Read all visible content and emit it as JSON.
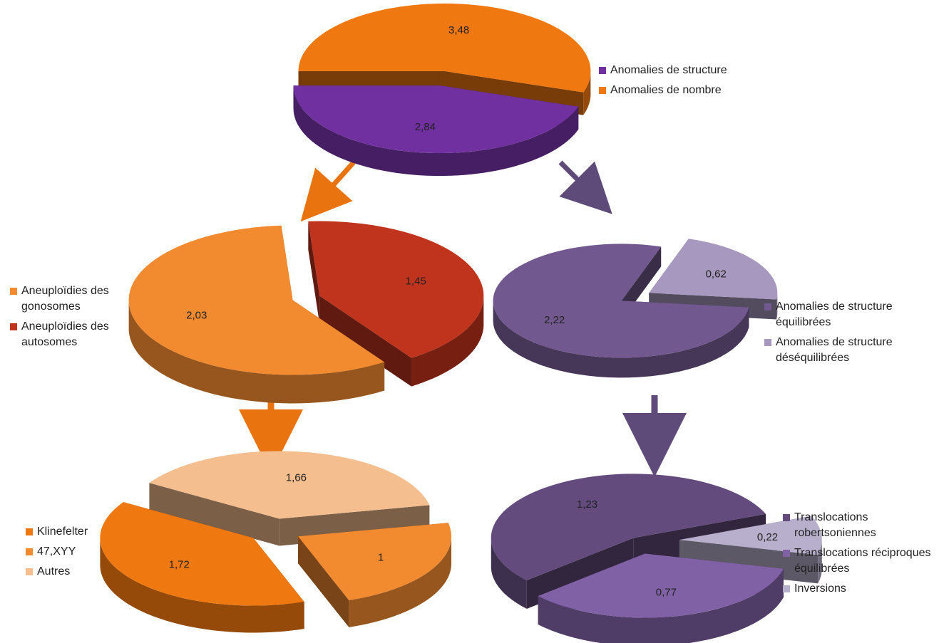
{
  "chart_data": [
    {
      "type": "pie",
      "categories": [
        "Anomalies de structure",
        "Anomalies de nombre"
      ],
      "values": [
        2.84,
        3.48
      ],
      "value_labels": [
        "2,84",
        "3,48"
      ],
      "colors": [
        "#7030A0",
        "#F07810"
      ],
      "legend_colors": [
        "#7030A0",
        "#F07810"
      ],
      "legend": "right"
    },
    {
      "type": "pie",
      "categories": [
        "Aneuploïdies des gonosomes",
        "Aneuploïdies des autosomes"
      ],
      "values": [
        2.03,
        1.45
      ],
      "value_labels": [
        "2,03",
        "1,45"
      ],
      "colors": [
        "#F28A30",
        "#C0341D"
      ],
      "legend_colors": [
        "#F28A30",
        "#C0341D"
      ],
      "legend": "left"
    },
    {
      "type": "pie",
      "categories": [
        "Anomalies de structure équilibrées",
        "Anomalies de structure déséquilibrées"
      ],
      "values": [
        2.22,
        0.62
      ],
      "value_labels": [
        "2,22",
        "0,62"
      ],
      "colors": [
        "#71598F",
        "#A698BE"
      ],
      "legend_colors": [
        "#71598F",
        "#A698BE"
      ],
      "legend": "right"
    },
    {
      "type": "pie",
      "categories": [
        "Klinefelter",
        "47,XYY",
        "Autres"
      ],
      "values": [
        1.72,
        1,
        1.66
      ],
      "value_labels": [
        "1,72",
        "1",
        "1,66"
      ],
      "colors": [
        "#F07810",
        "#F28A30",
        "#F5BE8E"
      ],
      "legend_colors": [
        "#F07810",
        "#F28A30",
        "#F5BE8E"
      ],
      "legend": "left"
    },
    {
      "type": "pie",
      "categories": [
        "Translocations robertsoniennes",
        "Translocations réciproques équilibrées",
        "Inversions"
      ],
      "values": [
        1.23,
        0.77,
        0.22
      ],
      "value_labels": [
        "1,23",
        "0,77",
        "0,22"
      ],
      "colors": [
        "#634B7E",
        "#8061A6",
        "#B8AFCC"
      ],
      "legend_colors": [
        "#634B7E",
        "#8061A6",
        "#B8AFCC"
      ],
      "legend": "right"
    }
  ],
  "arrow_colors": [
    "#E8730F",
    "#5E4B7A"
  ]
}
